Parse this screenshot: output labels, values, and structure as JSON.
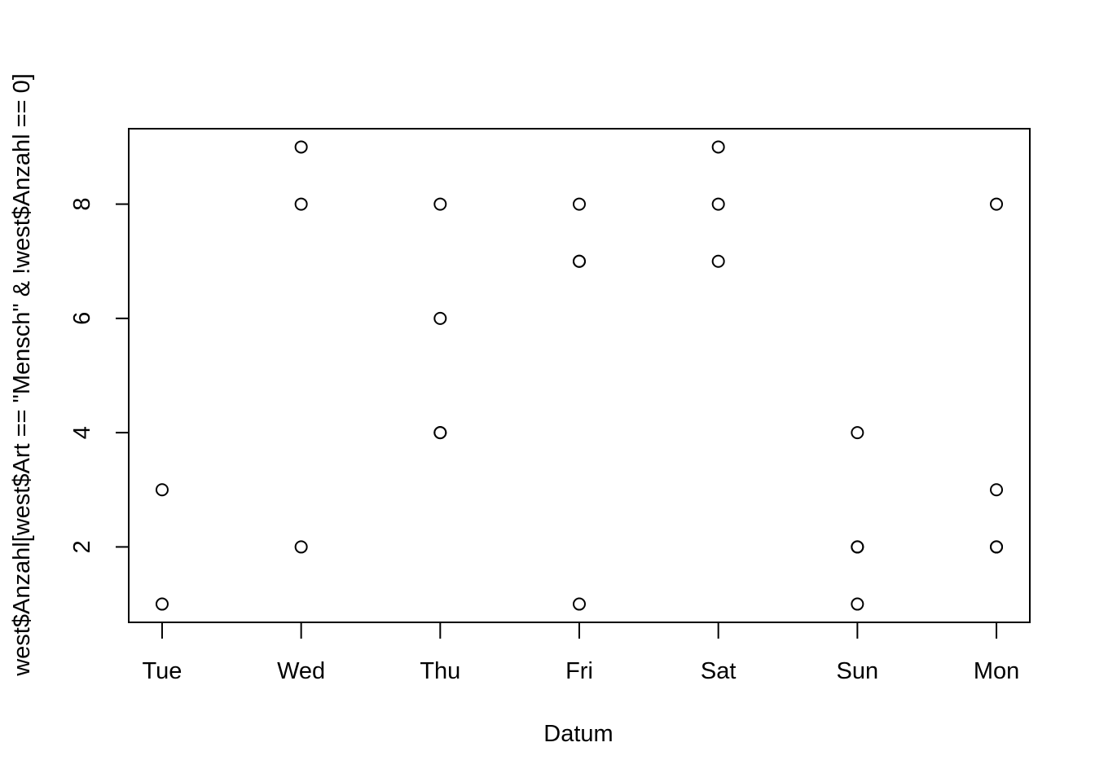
{
  "chart_data": {
    "type": "scatter",
    "title": "",
    "xlabel": "Datum",
    "ylabel": "west$Anzahl[west$Art == \"Mensch\" & !west$Anzahl == 0]",
    "categories": [
      "Tue",
      "Wed",
      "Thu",
      "Fri",
      "Sat",
      "Sun",
      "Mon"
    ],
    "yticks": [
      2,
      4,
      6,
      8
    ],
    "ylim": [
      0.68,
      9.32
    ],
    "xlim": [
      -0.24,
      6.24
    ],
    "grid": false,
    "marker": "open-circle",
    "colors": {
      "points": "#000000",
      "axes": "#000000",
      "background": "#ffffff"
    },
    "points": [
      {
        "x": "Tue",
        "y": 3
      },
      {
        "x": "Tue",
        "y": 1
      },
      {
        "x": "Wed",
        "y": 9
      },
      {
        "x": "Wed",
        "y": 8
      },
      {
        "x": "Wed",
        "y": 2
      },
      {
        "x": "Thu",
        "y": 8
      },
      {
        "x": "Thu",
        "y": 6
      },
      {
        "x": "Thu",
        "y": 4
      },
      {
        "x": "Thu",
        "y": 4
      },
      {
        "x": "Fri",
        "y": 8
      },
      {
        "x": "Fri",
        "y": 7
      },
      {
        "x": "Fri",
        "y": 7
      },
      {
        "x": "Fri",
        "y": 1
      },
      {
        "x": "Sat",
        "y": 9
      },
      {
        "x": "Sat",
        "y": 8
      },
      {
        "x": "Sat",
        "y": 7
      },
      {
        "x": "Sun",
        "y": 4
      },
      {
        "x": "Sun",
        "y": 2
      },
      {
        "x": "Sun",
        "y": 2
      },
      {
        "x": "Sun",
        "y": 1
      },
      {
        "x": "Mon",
        "y": 8
      },
      {
        "x": "Mon",
        "y": 3
      },
      {
        "x": "Mon",
        "y": 2
      },
      {
        "x": "Mon",
        "y": 2
      }
    ]
  }
}
